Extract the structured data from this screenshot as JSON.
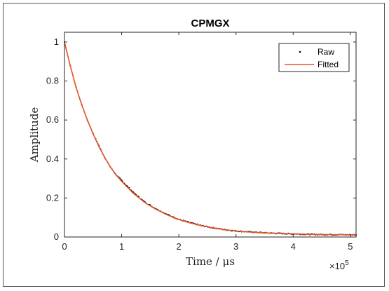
{
  "chart_data": {
    "type": "scatter",
    "title": "CPMGX",
    "xlabel": "Time / μs",
    "ylabel": "Amplitude",
    "xlim": [
      0,
      5.1
    ],
    "ylim": [
      0,
      1.05
    ],
    "x_multiplier": "×10",
    "x_exponent": "5",
    "xticks": [
      "0",
      "1",
      "2",
      "3",
      "4",
      "5"
    ],
    "yticks": [
      "0",
      "0.2",
      "0.4",
      "0.6",
      "0.8",
      "1"
    ],
    "grid": false,
    "legend_position": "top-right",
    "series": [
      {
        "name": "Raw",
        "style": "points",
        "color": "#000000",
        "x": [
          0,
          0.1,
          0.2,
          0.3,
          0.4,
          0.5,
          0.6,
          0.7,
          0.8,
          0.9,
          1.0,
          1.2,
          1.4,
          1.6,
          1.8,
          2.0,
          2.2,
          2.4,
          2.6,
          2.8,
          3.0,
          3.3,
          3.6,
          4.0,
          4.4,
          4.8,
          5.1
        ],
        "y": [
          1.0,
          0.88,
          0.77,
          0.68,
          0.6,
          0.53,
          0.47,
          0.41,
          0.36,
          0.32,
          0.29,
          0.23,
          0.18,
          0.145,
          0.115,
          0.09,
          0.073,
          0.058,
          0.047,
          0.038,
          0.031,
          0.025,
          0.02,
          0.016,
          0.013,
          0.012,
          0.011
        ]
      },
      {
        "name": "Fitted",
        "style": "line",
        "color": "#e8542a",
        "x": [
          0,
          0.1,
          0.2,
          0.3,
          0.4,
          0.5,
          0.6,
          0.7,
          0.8,
          0.9,
          1.0,
          1.2,
          1.4,
          1.6,
          1.8,
          2.0,
          2.2,
          2.4,
          2.6,
          2.8,
          3.0,
          3.3,
          3.6,
          4.0,
          4.4,
          4.8,
          5.1
        ],
        "y": [
          1.0,
          0.88,
          0.77,
          0.68,
          0.6,
          0.53,
          0.465,
          0.41,
          0.36,
          0.32,
          0.285,
          0.225,
          0.178,
          0.142,
          0.113,
          0.09,
          0.072,
          0.058,
          0.047,
          0.038,
          0.031,
          0.024,
          0.02,
          0.016,
          0.013,
          0.012,
          0.011
        ]
      }
    ]
  }
}
